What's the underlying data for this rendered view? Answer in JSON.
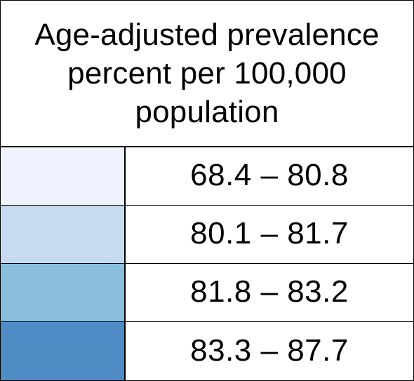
{
  "legend": {
    "title": "Age-adjusted prevalence\npercent  per 100,000\npopulation",
    "classes": [
      {
        "color": "#eff3ff",
        "label": "68.4 – 80.8"
      },
      {
        "color": "#c6dbef",
        "label": "80.1 – 81.7"
      },
      {
        "color": "#8abfdc",
        "label": "81.8 – 83.2"
      },
      {
        "color": "#4f8cc5",
        "label": "83.3 – 87.7"
      }
    ]
  }
}
